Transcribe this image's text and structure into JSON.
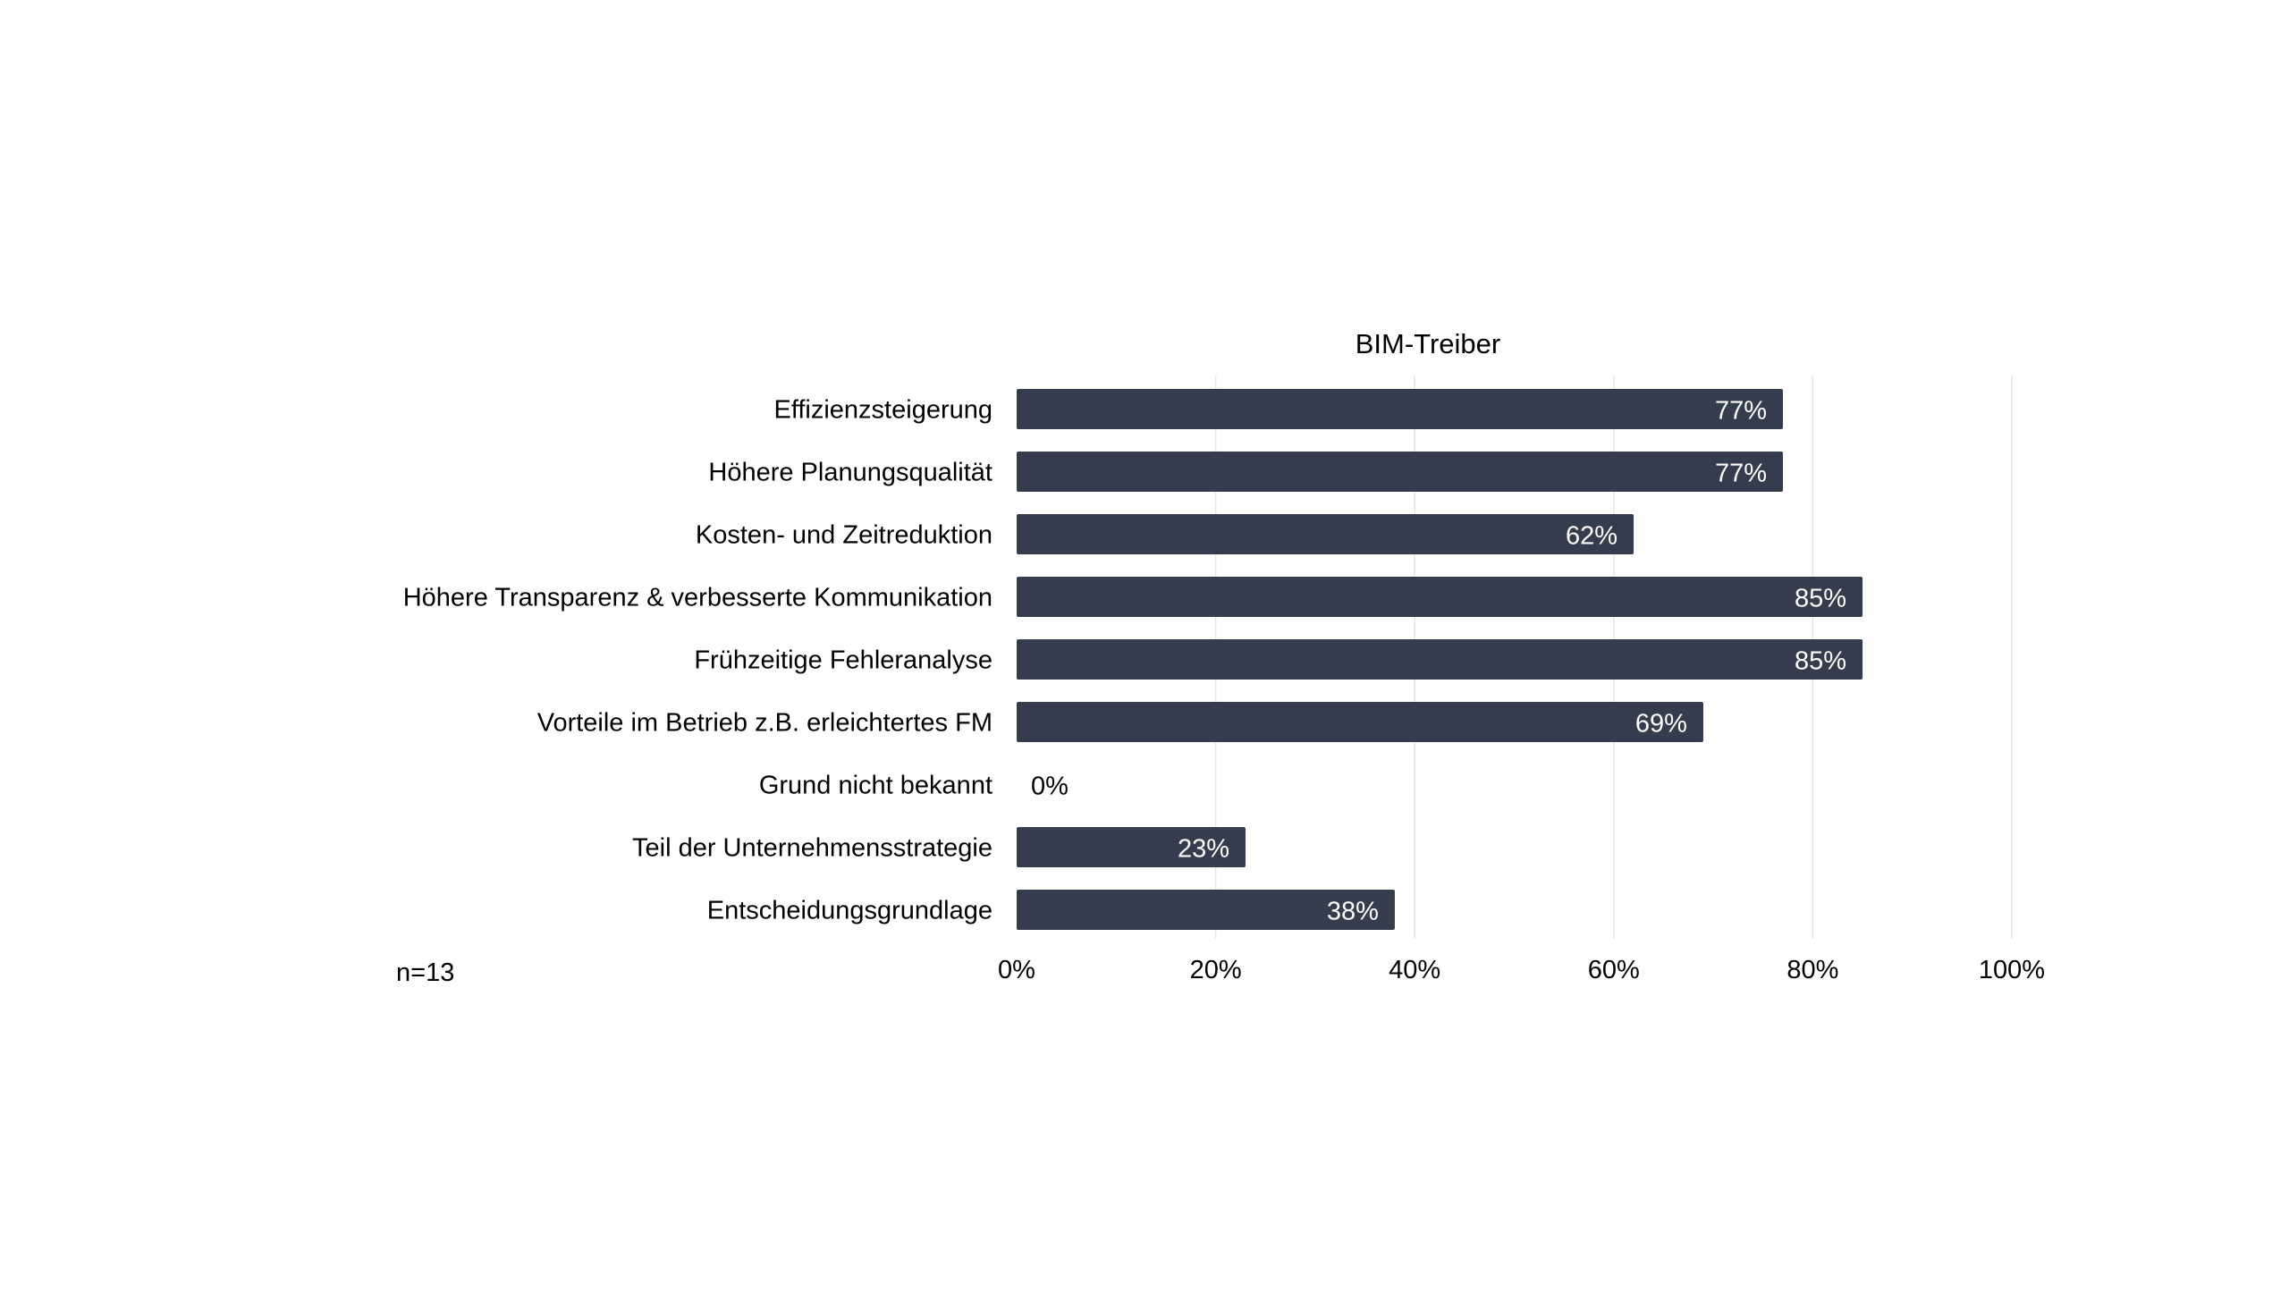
{
  "chart_data": {
    "type": "bar",
    "orientation": "horizontal",
    "title": "BIM-Treiber",
    "categories": [
      "Effizienzsteigerung",
      "Höhere Planungsqualität",
      "Kosten- und Zeitreduktion",
      "Höhere Transparenz & verbesserte Kommunikation",
      "Frühzeitige Fehleranalyse",
      "Vorteile im Betrieb z.B. erleichtertes FM",
      "Grund nicht bekannt",
      "Teil der Unternehmensstrategie",
      "Entscheidungsgrundlage"
    ],
    "values": [
      77,
      77,
      62,
      85,
      85,
      69,
      0,
      23,
      38
    ],
    "data_labels": [
      "77%",
      "77%",
      "62%",
      "85%",
      "85%",
      "69%",
      "0%",
      "23%",
      "38%"
    ],
    "xlim": [
      0,
      100
    ],
    "x_ticks": [
      "0%",
      "20%",
      "40%",
      "60%",
      "80%",
      "100%"
    ],
    "grid": true,
    "xlabel": "",
    "ylabel": "",
    "note": "n=13",
    "colors": {
      "bar": "#333d4e",
      "bar_label": "#ffffff",
      "grid": "#e6e6e6",
      "text": "#000000"
    }
  }
}
